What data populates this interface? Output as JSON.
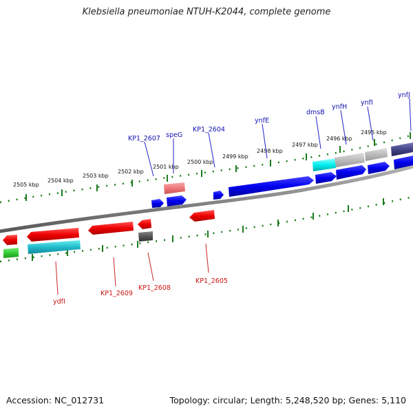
{
  "header": {
    "title": "Klebsiella pneumoniae NTUH-K2044, complete genome"
  },
  "footer": {
    "accession": "Accession: NC_012731",
    "summary": "Topology: circular; Length: 5,248,520 bp; Genes: 5,110"
  },
  "colors": {
    "forward_label": "#1010b0",
    "reverse_label": "#cc1111",
    "backbone": "#8a8a8a",
    "tick": "#1a7a1a"
  },
  "scale_labels": [
    "2505 kbp",
    "2504 kbp",
    "2503 kbp",
    "2502 kbp",
    "2501 kbp",
    "2500 kbp",
    "2499 kbp",
    "2498 kbp",
    "2497 kbp",
    "2496 kbp",
    "2495 kbp"
  ],
  "forward_gene_labels": [
    "ynfJ",
    "ynfI",
    "ynfH",
    "dmsB",
    "ynfE",
    "KP1_2604",
    "speG",
    "KP1_2607"
  ],
  "reverse_gene_labels": [
    "ydfI",
    "KP1_2609",
    "KP1_2608",
    "KP1_2605"
  ]
}
